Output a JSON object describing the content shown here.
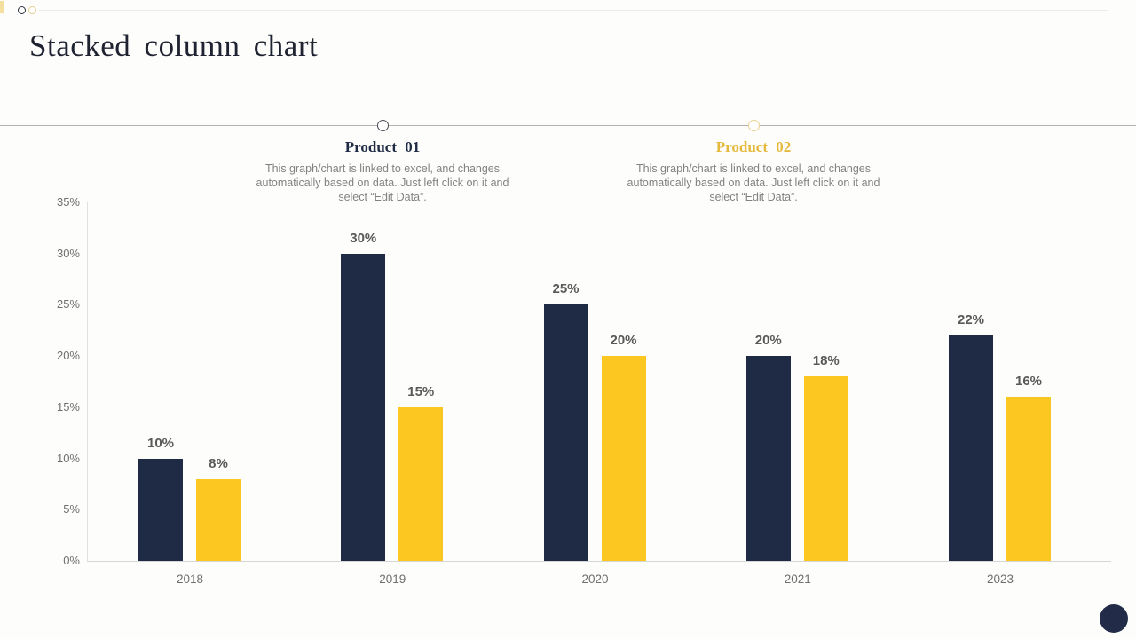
{
  "slide": {
    "title": "Stacked column chart",
    "background_color": "#fdfdfb",
    "accent_navy": "#1F2A44",
    "accent_yellow": "#FCC720"
  },
  "decor": {
    "top_left_icons": [
      "circle-outline-navy-icon",
      "circle-outline-yellow-icon"
    ],
    "bottom_right_icon": "filled-circle-navy-icon"
  },
  "callouts": [
    {
      "label": "Product 01",
      "description": "This graph/chart is linked to excel, and changes automatically based on data. Just left click on it and select “Edit Data”.",
      "accent_color": "#1F2A44",
      "marker_icon": "circle-outline-icon"
    },
    {
      "label": "Product 02",
      "description": "This graph/chart is linked to excel, and changes automatically based on data. Just left click on it and select “Edit Data”.",
      "accent_color": "#E4B93E",
      "marker_icon": "circle-outline-icon"
    }
  ],
  "chart_data": {
    "type": "bar",
    "categories": [
      "2018",
      "2019",
      "2020",
      "2021",
      "2023"
    ],
    "series": [
      {
        "name": "Product 01",
        "color": "#1F2A44",
        "values": [
          10,
          30,
          25,
          20,
          22
        ]
      },
      {
        "name": "Product 02",
        "color": "#FCC720",
        "values": [
          8,
          15,
          20,
          18,
          16
        ]
      }
    ],
    "value_label_suffix": "%",
    "yticks": [
      "0%",
      "5%",
      "10%",
      "15%",
      "20%",
      "25%",
      "30%",
      "35%"
    ],
    "ylim": [
      0,
      35
    ],
    "grid": false,
    "legend": "none",
    "value_label_color": "#595959",
    "axis_label_color": "#6f6f6f"
  }
}
